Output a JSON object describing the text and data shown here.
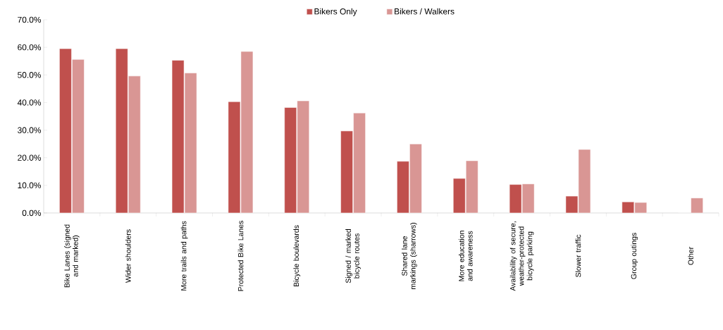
{
  "chart_data": {
    "type": "bar",
    "categories": [
      "Bike Lanes (signed and marked)",
      "Wider shoulders",
      "More trails and paths",
      "Protected Bike Lanes",
      "Bicycle boulevards",
      "Signed / marked bicycle routes",
      "Shared lane markings (sharrows)",
      "More education and awareness",
      "Availability of secure, weather-protected bicycle parking",
      "Slower traffic",
      "Group outings",
      "Other"
    ],
    "series": [
      {
        "name": "Bikers Only",
        "color": "#c0504d",
        "values": [
          59.5,
          59.5,
          55.3,
          40.3,
          38.2,
          29.7,
          18.7,
          12.5,
          10.3,
          6.1,
          4.0,
          0
        ]
      },
      {
        "name": "Bikers / Walkers",
        "color": "#d99694",
        "values": [
          55.6,
          49.6,
          50.7,
          58.5,
          40.6,
          36.2,
          25.0,
          18.9,
          10.5,
          23.0,
          3.8,
          5.4
        ]
      }
    ],
    "ylim": [
      0,
      70
    ],
    "yticks": [
      {
        "value": 0,
        "label": "0.0%"
      },
      {
        "value": 10,
        "label": "10.0%"
      },
      {
        "value": 20,
        "label": "20.0%"
      },
      {
        "value": 30,
        "label": "30.0%"
      },
      {
        "value": 40,
        "label": "40.0%"
      },
      {
        "value": 50,
        "label": "50.0%"
      },
      {
        "value": 60,
        "label": "60.0%"
      },
      {
        "value": 70,
        "label": "70.0%"
      }
    ],
    "legend": "top",
    "grid": false
  }
}
